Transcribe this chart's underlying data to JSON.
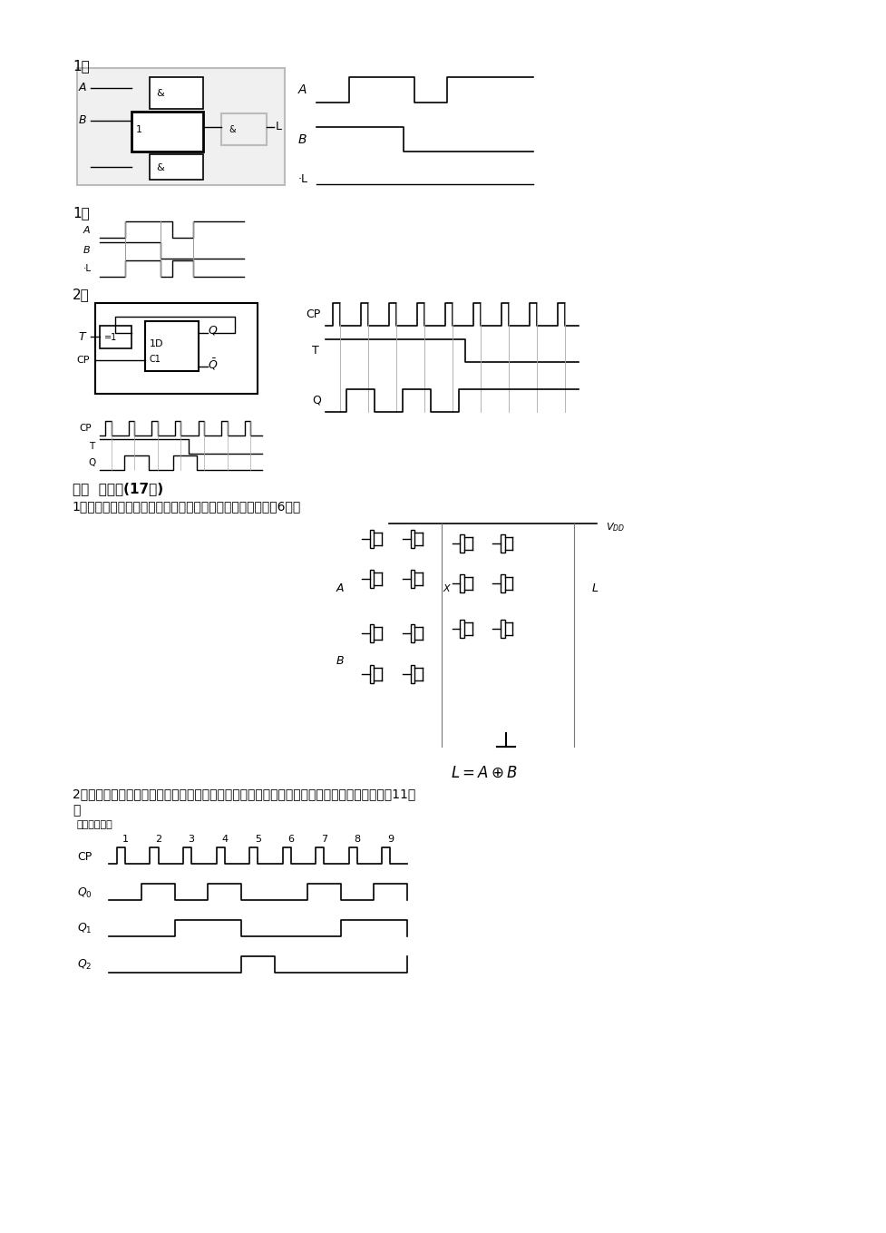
{
  "bg_color": "#ffffff",
  "text_color": "#000000",
  "page_width": 9.2,
  "page_height": 13.02,
  "section1_label": "1、",
  "section1_1_label": "1、",
  "section2_label": "2、",
  "section4_label": "四、  分析题(17分)",
  "section4_1": "1、分析下图，并写出输出逻辑关系表达式，要有分析过程（6分）",
  "section4_formula": "$L = A \\oplus B$",
  "section4_2_line1": "2、电路如图所示，分析该电路，画出完全的时序图，并说明电路的逻辑功能，要有分析过程（11分",
  "section4_2_line2": "）",
  "counter_label": "五进制计数器"
}
